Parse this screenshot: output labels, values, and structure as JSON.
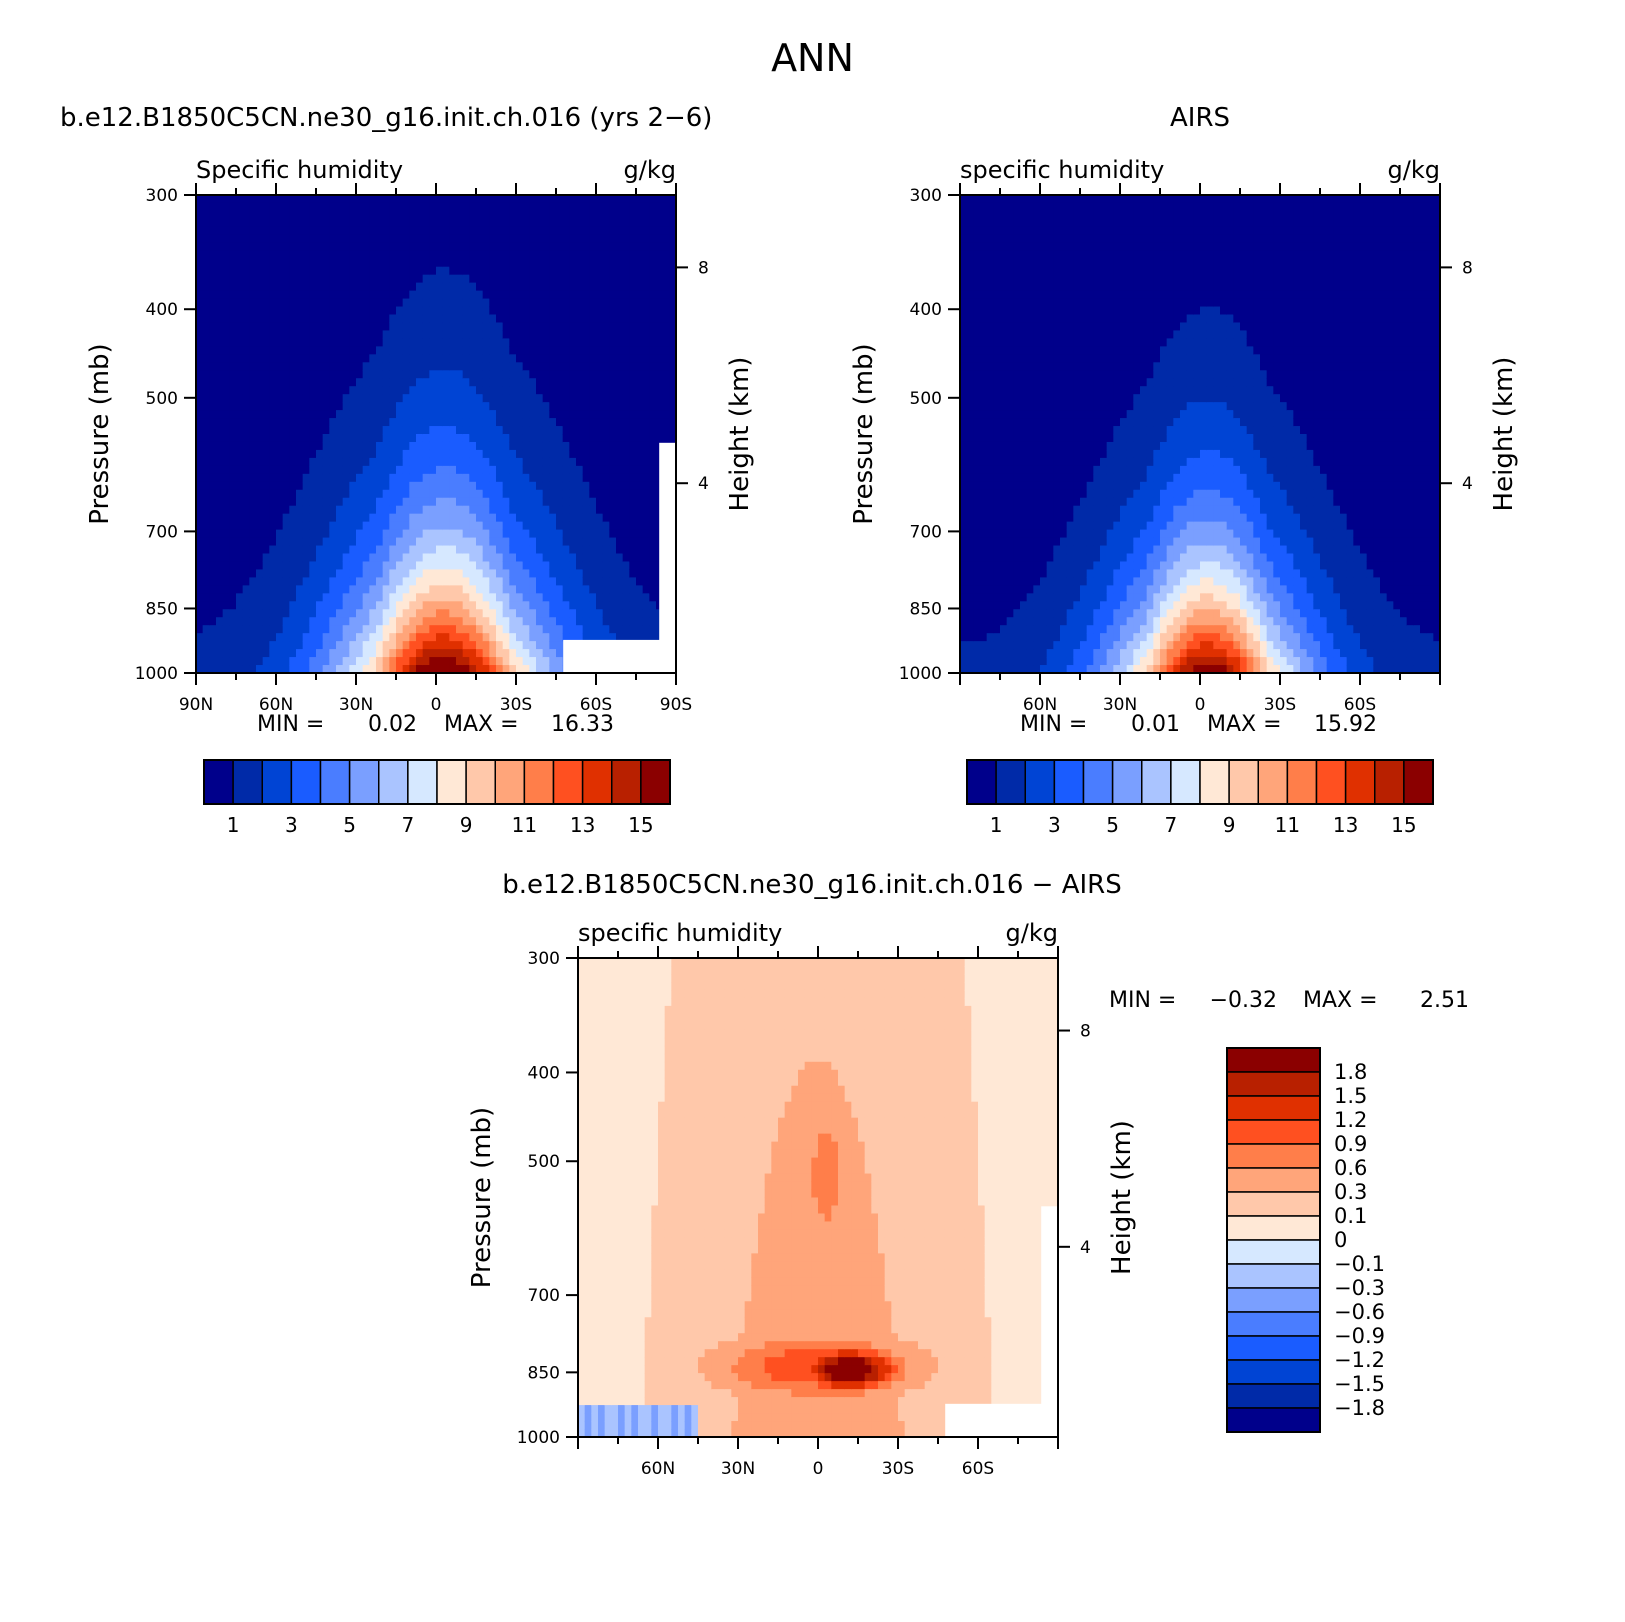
{
  "page_title": "ANN",
  "chart_data": [
    {
      "type": "heatmap",
      "panel": "model",
      "title": "b.e12.B1850C5CN.ne30_g16.init.ch.016 (yrs 2−6)",
      "left_subtitle": "Specific humidity",
      "right_subtitle": "g/kg",
      "ylabel": "Pressure (mb)",
      "y2label": "Height (km)",
      "y_axis": "log pressure, reversed",
      "ylim": [
        1000,
        300
      ],
      "xlim": [
        90,
        -90
      ],
      "yticks": [
        "300",
        "400",
        "500",
        "700",
        "850",
        "1000"
      ],
      "y2ticks": [
        "8",
        "4"
      ],
      "xticks": [
        "90N",
        "60N",
        "30N",
        "0",
        "30S",
        "60S",
        "90S"
      ],
      "min_label": "MIN =",
      "min_value": "0.02",
      "max_label": "MAX =",
      "max_value": "16.33",
      "levels": [
        1,
        2,
        3,
        4,
        5,
        6,
        7,
        8,
        9,
        10,
        11,
        12,
        13,
        14,
        15
      ],
      "colorbar_labels": [
        "1",
        "3",
        "5",
        "7",
        "9",
        "11",
        "13",
        "15"
      ],
      "colors": [
        "#00008b",
        "#002aa8",
        "#0044d4",
        "#1a5cff",
        "#4a7dff",
        "#7a9fff",
        "#aac4ff",
        "#d6e8ff",
        "#ffe8d6",
        "#ffc8aa",
        "#ffa57a",
        "#ff7e4a",
        "#ff5020",
        "#e03000",
        "#b82000",
        "#8b0000"
      ]
    },
    {
      "type": "heatmap",
      "panel": "obs",
      "title": "AIRS",
      "left_subtitle": "specific humidity",
      "right_subtitle": "g/kg",
      "ylabel": "Pressure (mb)",
      "y2label": "Height (km)",
      "y_axis": "log pressure, reversed",
      "ylim": [
        1000,
        300
      ],
      "xlim": [
        90,
        -90
      ],
      "yticks": [
        "300",
        "400",
        "500",
        "700",
        "850",
        "1000"
      ],
      "y2ticks": [
        "8",
        "4"
      ],
      "xticks": [
        "60N",
        "30N",
        "0",
        "30S",
        "60S"
      ],
      "min_label": "MIN =",
      "min_value": "0.01",
      "max_label": "MAX =",
      "max_value": "15.92",
      "levels": [
        1,
        2,
        3,
        4,
        5,
        6,
        7,
        8,
        9,
        10,
        11,
        12,
        13,
        14,
        15
      ],
      "colorbar_labels": [
        "1",
        "3",
        "5",
        "7",
        "9",
        "11",
        "13",
        "15"
      ],
      "colors": [
        "#00008b",
        "#002aa8",
        "#0044d4",
        "#1a5cff",
        "#4a7dff",
        "#7a9fff",
        "#aac4ff",
        "#d6e8ff",
        "#ffe8d6",
        "#ffc8aa",
        "#ffa57a",
        "#ff7e4a",
        "#ff5020",
        "#e03000",
        "#b82000",
        "#8b0000"
      ]
    },
    {
      "type": "heatmap",
      "panel": "diff",
      "title": "b.e12.B1850C5CN.ne30_g16.init.ch.016 − AIRS",
      "left_subtitle": "specific humidity",
      "right_subtitle": "g/kg",
      "ylabel": "Pressure (mb)",
      "y2label": "Height (km)",
      "y_axis": "log pressure, reversed",
      "ylim": [
        1000,
        300
      ],
      "xlim": [
        90,
        -90
      ],
      "yticks": [
        "300",
        "400",
        "500",
        "700",
        "850",
        "1000"
      ],
      "y2ticks": [
        "8",
        "4"
      ],
      "xticks": [
        "60N",
        "30N",
        "0",
        "30S",
        "60S"
      ],
      "min_label": "MIN =",
      "min_value": "−0.32",
      "max_label": "MAX =",
      "max_value": "2.51",
      "levels": [
        -1.8,
        -1.5,
        -1.2,
        -0.9,
        -0.6,
        -0.3,
        -0.1,
        0,
        0.1,
        0.3,
        0.6,
        0.9,
        1.2,
        1.5,
        1.8
      ],
      "colorbar_labels": [
        "1.8",
        "1.5",
        "1.2",
        "0.9",
        "0.6",
        "0.3",
        "0.1",
        "0",
        "−0.1",
        "−0.3",
        "−0.6",
        "−0.9",
        "−1.2",
        "−1.5",
        "−1.8"
      ],
      "colors": [
        "#00008b",
        "#002aa8",
        "#0044d4",
        "#1a5cff",
        "#4a7dff",
        "#7a9fff",
        "#aac4ff",
        "#d6e8ff",
        "#ffe8d6",
        "#ffc8aa",
        "#ffa57a",
        "#ff7e4a",
        "#ff5020",
        "#e03000",
        "#b82000",
        "#8b0000"
      ]
    }
  ]
}
